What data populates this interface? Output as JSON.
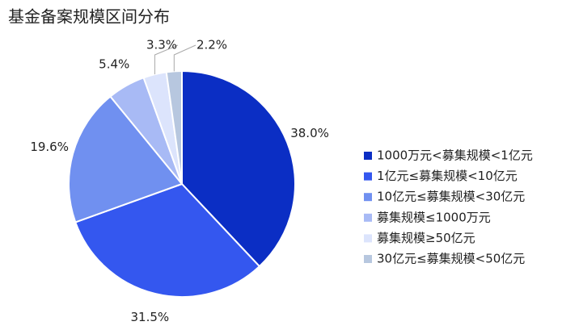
{
  "chart_data": {
    "type": "pie",
    "title": "基金备案规模区间分布",
    "categories": [
      "1000万元<募集规模<1亿元",
      "1亿元≤募集规模<10亿元",
      "10亿元≤募集规模<30亿元",
      "募集规模≤1000万元",
      "募集规模≥50亿元",
      "30亿元≤募集规模<50亿元"
    ],
    "values": [
      38.0,
      31.5,
      19.6,
      5.4,
      3.3,
      2.2
    ],
    "value_labels": [
      "38.0%",
      "31.5%",
      "19.6%",
      "5.4%",
      "3.3%",
      "2.2%"
    ],
    "colors": [
      "#0b2ec4",
      "#3457ef",
      "#7090f0",
      "#a8baf5",
      "#dce4fc",
      "#b7c7df"
    ],
    "legend": "right"
  }
}
